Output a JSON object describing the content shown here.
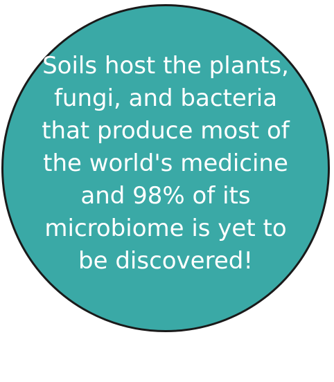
{
  "circle": {
    "fill_color": "#3aa9a6",
    "border_color": "#1a1a1a",
    "text_color": "#ffffff",
    "lines": [
      "Soils host the plants,",
      "fungi, and bacteria",
      "that produce most of",
      "the world's medicine",
      "and 98% of its",
      "microbiome is yet to",
      "be discovered!"
    ]
  }
}
